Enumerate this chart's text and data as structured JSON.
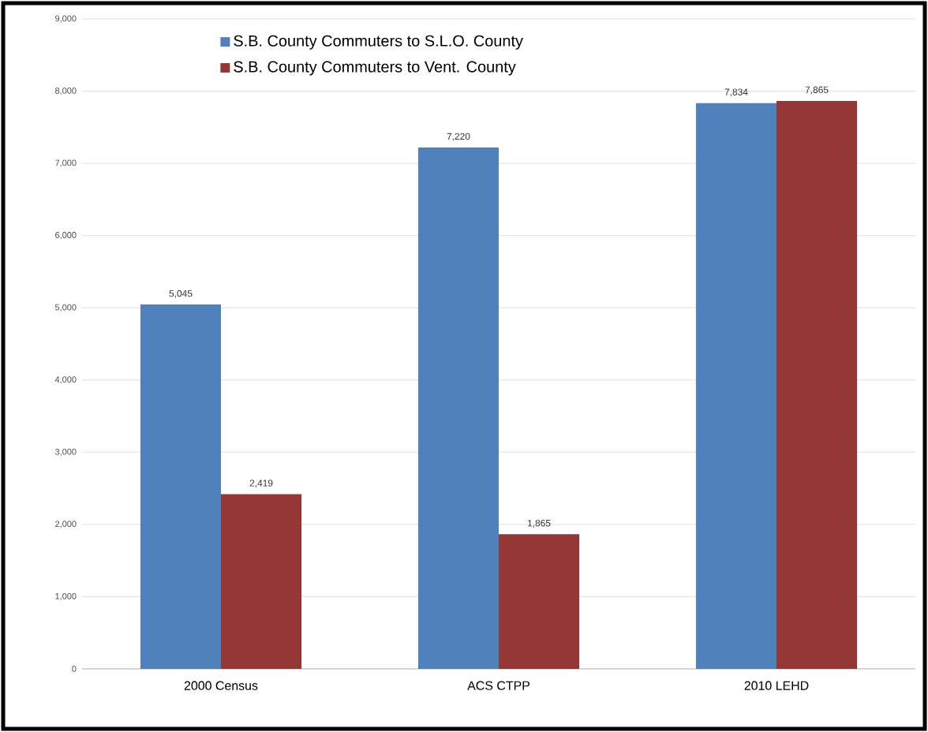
{
  "chart_data": {
    "type": "bar",
    "categories": [
      "2000 Census",
      "ACS CTPP",
      "2010 LEHD"
    ],
    "series": [
      {
        "name": "S.B. County Commuters to S.L.O. County",
        "color": "#4f81bd",
        "values": [
          5045,
          7220,
          7834
        ],
        "value_labels": [
          "5,045",
          "7,220",
          "7,834"
        ]
      },
      {
        "name": "S.B. County Commuters to  Vent. County",
        "color": "#953735",
        "values": [
          2419,
          1865,
          7865
        ],
        "value_labels": [
          "2,419",
          "1,865",
          "7,865"
        ]
      }
    ],
    "ylim": [
      0,
      9000
    ],
    "yticks": [
      0,
      {
        "value": 1000,
        "label": "1,000"
      },
      {
        "value": 2000,
        "label": "2,000"
      },
      {
        "value": 3000,
        "label": "3,000"
      },
      {
        "value": 4000,
        "label": "4,000"
      },
      {
        "value": 5000,
        "label": "5,000"
      },
      {
        "value": 6000,
        "label": "6,000"
      },
      {
        "value": 7000,
        "label": "7,000"
      },
      {
        "value": 8000,
        "label": "8,000"
      },
      {
        "value": 9000,
        "label": "9,000"
      }
    ],
    "grid": "y",
    "legend": "top left"
  }
}
